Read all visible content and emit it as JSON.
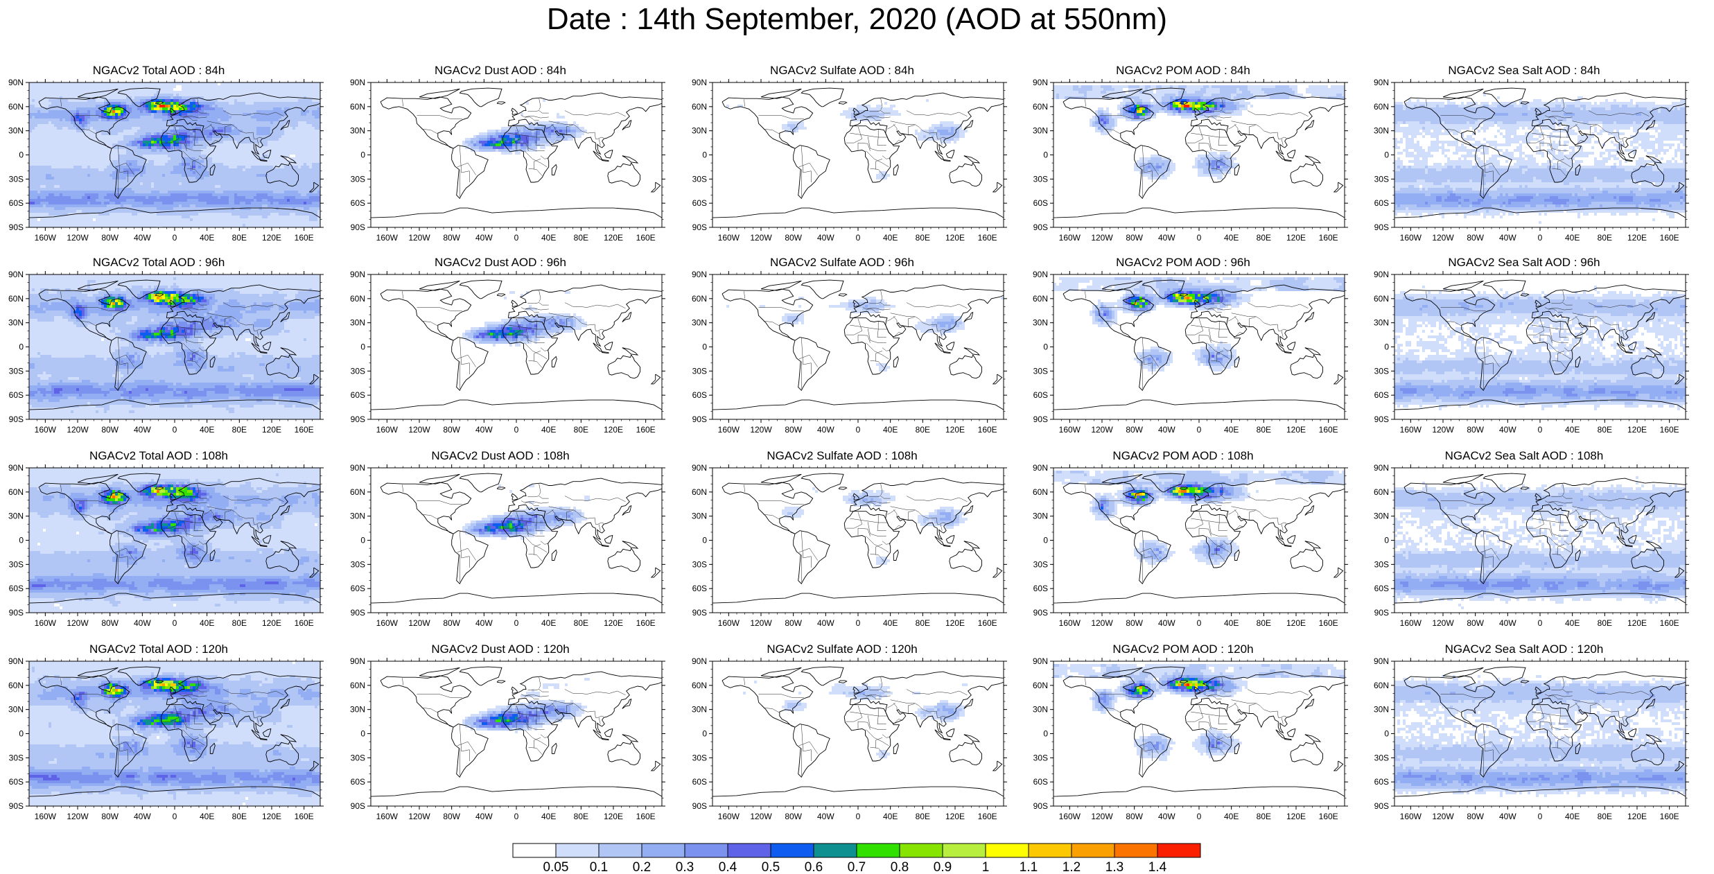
{
  "title": "Date : 14th September, 2020 (AOD at 550nm)",
  "lat_ticks": [
    "90N",
    "60N",
    "30N",
    "0",
    "30S",
    "60S",
    "90S"
  ],
  "lon_ticks": [
    "160W",
    "120W",
    "80W",
    "40W",
    "0",
    "40E",
    "80E",
    "120E",
    "160E"
  ],
  "panels": [
    {
      "title": "NGACv2 Total AOD : 84h",
      "species": "total",
      "hour": 84
    },
    {
      "title": "NGACv2 Dust AOD : 84h",
      "species": "dust",
      "hour": 84
    },
    {
      "title": "NGACv2 Sulfate AOD : 84h",
      "species": "sulfate",
      "hour": 84
    },
    {
      "title": "NGACv2 POM AOD : 84h",
      "species": "pom",
      "hour": 84
    },
    {
      "title": "NGACv2 Sea Salt AOD : 84h",
      "species": "seasalt",
      "hour": 84
    },
    {
      "title": "NGACv2 Total AOD : 96h",
      "species": "total",
      "hour": 96
    },
    {
      "title": "NGACv2 Dust AOD : 96h",
      "species": "dust",
      "hour": 96
    },
    {
      "title": "NGACv2 Sulfate AOD : 96h",
      "species": "sulfate",
      "hour": 96
    },
    {
      "title": "NGACv2 POM AOD : 96h",
      "species": "pom",
      "hour": 96
    },
    {
      "title": "NGACv2 Sea Salt AOD : 96h",
      "species": "seasalt",
      "hour": 96
    },
    {
      "title": "NGACv2 Total AOD : 108h",
      "species": "total",
      "hour": 108
    },
    {
      "title": "NGACv2 Dust AOD : 108h",
      "species": "dust",
      "hour": 108
    },
    {
      "title": "NGACv2 Sulfate AOD : 108h",
      "species": "sulfate",
      "hour": 108
    },
    {
      "title": "NGACv2 POM AOD : 108h",
      "species": "pom",
      "hour": 108
    },
    {
      "title": "NGACv2 Sea Salt AOD : 108h",
      "species": "seasalt",
      "hour": 108
    },
    {
      "title": "NGACv2 Total AOD : 120h",
      "species": "total",
      "hour": 120
    },
    {
      "title": "NGACv2 Dust AOD : 120h",
      "species": "dust",
      "hour": 120
    },
    {
      "title": "NGACv2 Sulfate AOD : 120h",
      "species": "sulfate",
      "hour": 120
    },
    {
      "title": "NGACv2 POM AOD : 120h",
      "species": "pom",
      "hour": 120
    },
    {
      "title": "NGACv2 Sea Salt  AOD : 120h",
      "species": "seasalt",
      "hour": 120
    }
  ],
  "colorbar": {
    "colors": [
      "#ffffff",
      "#d0ddfb",
      "#b2c6f6",
      "#93aef2",
      "#7b92ee",
      "#5e63e8",
      "#0f5cf0",
      "#0f9090",
      "#32e000",
      "#87e400",
      "#b8ee3e",
      "#fffe00",
      "#fbc802",
      "#fba002",
      "#fb7400",
      "#fb1f00"
    ],
    "labels": [
      "0.05",
      "0.1",
      "0.2",
      "0.3",
      "0.4",
      "0.5",
      "0.6",
      "0.7",
      "0.8",
      "0.9",
      "1",
      "1.1",
      "1.2",
      "1.3",
      "1.4"
    ]
  }
}
